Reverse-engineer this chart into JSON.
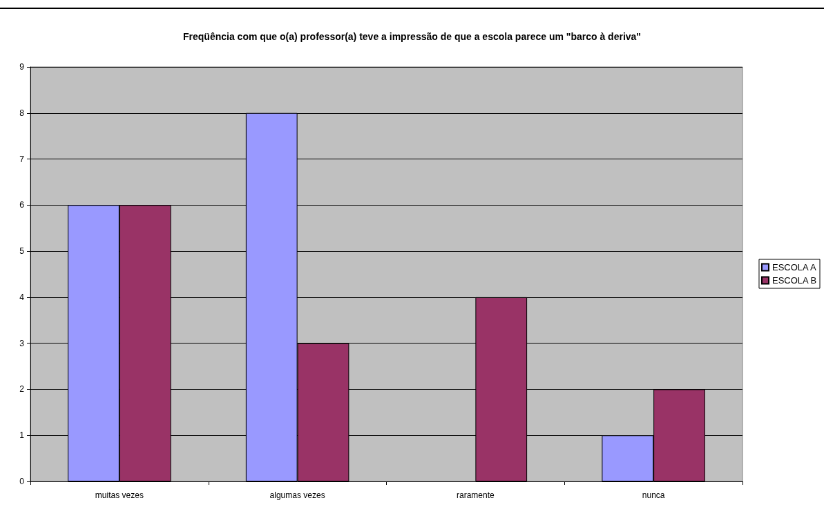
{
  "chart_data": {
    "type": "bar",
    "title": "Freqüência com que o(a) professor(a) teve a impressão de que a escola parece um \"barco à deriva\"",
    "categories": [
      "muitas vezes",
      "algumas vezes",
      "raramente",
      "nunca"
    ],
    "series": [
      {
        "name": "ESCOLA A",
        "color": "#9999ff",
        "values": [
          6,
          8,
          0,
          1
        ]
      },
      {
        "name": "ESCOLA B",
        "color": "#993366",
        "values": [
          6,
          3,
          4,
          2
        ]
      }
    ],
    "ylim": [
      0,
      9
    ],
    "yticks": [
      0,
      1,
      2,
      3,
      4,
      5,
      6,
      7,
      8,
      9
    ],
    "grid": "y",
    "legend": "right"
  }
}
